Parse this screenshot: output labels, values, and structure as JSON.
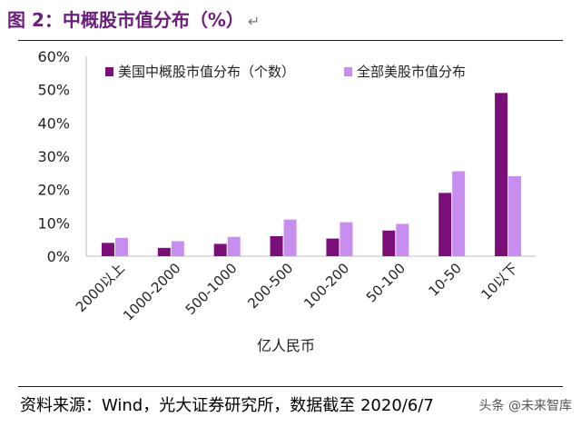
{
  "figure": {
    "title": "图 2：中概股市值分布（%）",
    "source": "资料来源：Wind，光大证券研究所，数据截至 2020/6/7",
    "watermark": "头条 @未来智库"
  },
  "chart_data": {
    "type": "bar",
    "title": "",
    "xlabel": "亿人民币",
    "ylabel": "",
    "ylim": [
      0,
      0.6
    ],
    "yticks": [
      "0%",
      "10%",
      "20%",
      "30%",
      "40%",
      "50%",
      "60%"
    ],
    "categories": [
      "2000以上",
      "1000-2000",
      "500-1000",
      "200-500",
      "100-200",
      "50-100",
      "10-50",
      "10以下"
    ],
    "series": [
      {
        "name": "美国中概股市值分布（个数）",
        "color": "#7a0f7a",
        "values": [
          0.04,
          0.025,
          0.037,
          0.06,
          0.053,
          0.077,
          0.19,
          0.49
        ]
      },
      {
        "name": "全部美股市值分布",
        "color": "#c78ef0",
        "values": [
          0.055,
          0.045,
          0.058,
          0.11,
          0.102,
          0.097,
          0.255,
          0.24
        ]
      }
    ],
    "grid": false,
    "legend": "top"
  }
}
